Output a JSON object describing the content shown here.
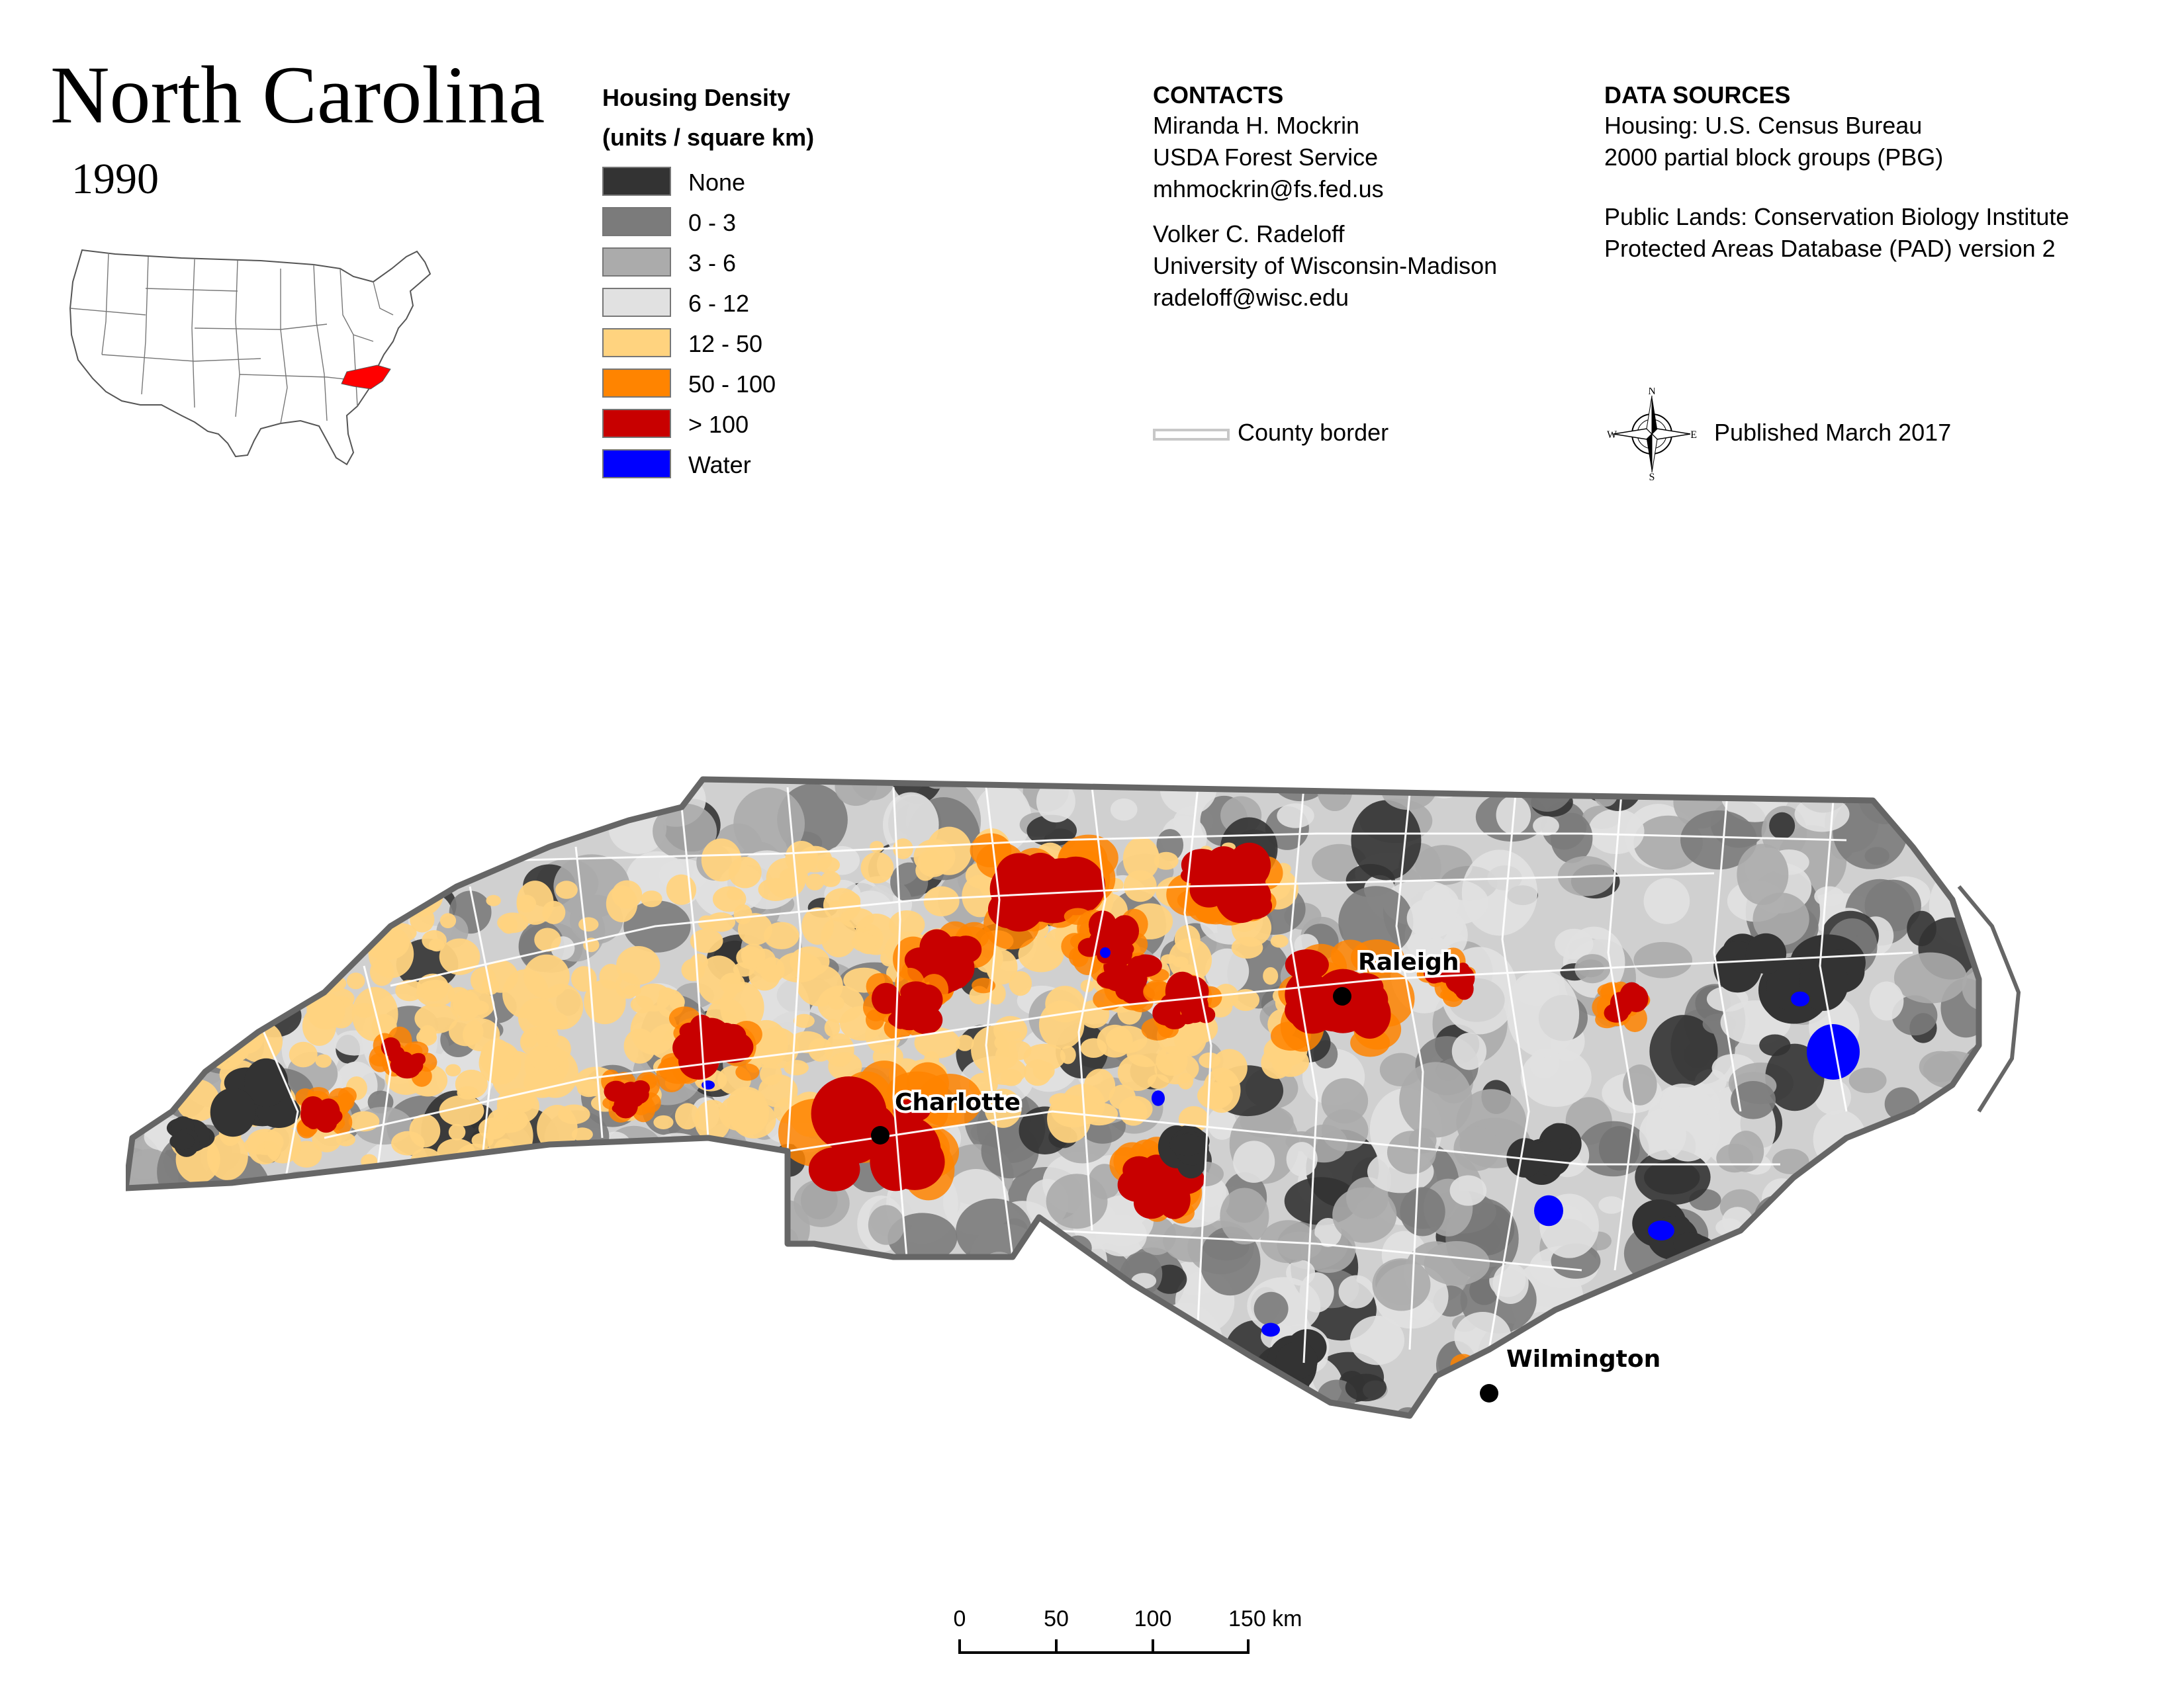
{
  "header": {
    "title": "North Carolina",
    "year": "1990"
  },
  "inset_map": {
    "highlight_color": "#ff0000",
    "state_fill": "#ffffff",
    "border_color": "#555555"
  },
  "legend": {
    "title_line1": "Housing Density",
    "title_line2": "(units / square km)",
    "items": [
      {
        "label": "None",
        "color": "#333333"
      },
      {
        "label": "0 - 3",
        "color": "#7b7b7b"
      },
      {
        "label": "3 - 6",
        "color": "#ababab"
      },
      {
        "label": "6 - 12",
        "color": "#e1e1e1"
      },
      {
        "label": "12 - 50",
        "color": "#ffd37f"
      },
      {
        "label": "50 - 100",
        "color": "#ff8400"
      },
      {
        "label": "> 100",
        "color": "#c80000"
      },
      {
        "label": "Water",
        "color": "#0000ff"
      }
    ]
  },
  "contacts": {
    "heading": "CONTACTS",
    "person1": [
      "Miranda H. Mockrin",
      "USDA Forest Service",
      "mhmockrin@fs.fed.us"
    ],
    "person2": [
      "Volker C. Radeloff",
      "University of Wisconsin-Madison",
      "radeloff@wisc.edu"
    ]
  },
  "data_sources": {
    "heading": "DATA SOURCES",
    "housing": [
      "Housing: U.S. Census Bureau",
      "2000 partial block groups (PBG)"
    ],
    "public_lands": [
      "Public Lands: Conservation Biology Institute",
      "Protected Areas Database (PAD) version 2"
    ]
  },
  "county_border": {
    "label": "County border",
    "color": "#c8c8c8"
  },
  "compass": {
    "n": "N",
    "s": "S",
    "e": "E",
    "w": "W"
  },
  "published": "Published March 2017",
  "cities": [
    {
      "name": "Raleigh"
    },
    {
      "name": "Charlotte"
    },
    {
      "name": "Wilmington"
    }
  ],
  "scale": {
    "ticks": [
      "0",
      "50",
      "100",
      "150 km"
    ]
  },
  "map_colors": {
    "outline": "#666666",
    "county_lines": "#ffffff"
  }
}
